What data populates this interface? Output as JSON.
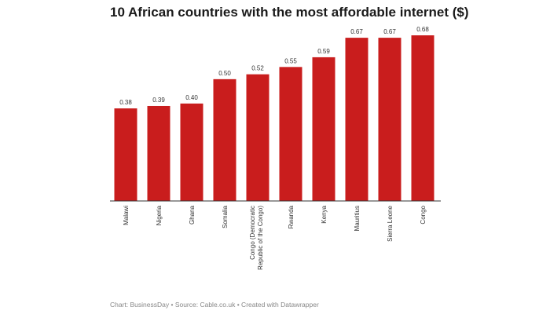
{
  "chart_data": {
    "type": "bar",
    "title": "10 African countries with the most affordable internet ($)",
    "categories": [
      "Malawi",
      "Nigeria",
      "Ghana",
      "Somalia",
      "Congo (Democratic Republic of the Congo)",
      "Rwanda",
      "Kenya",
      "Mauritius",
      "Sierra Leone",
      "Congo"
    ],
    "values": [
      0.38,
      0.39,
      0.4,
      0.5,
      0.52,
      0.55,
      0.59,
      0.67,
      0.67,
      0.68
    ],
    "value_labels": [
      "0.38",
      "0.39",
      "0.40",
      "0.50",
      "0.52",
      "0.55",
      "0.59",
      "0.67",
      "0.67",
      "0.68"
    ],
    "xlabel": "",
    "ylabel": "",
    "ylim": [
      0,
      0.68
    ],
    "grid": false,
    "bar_color": "#c91d1d"
  },
  "footer": {
    "source": "Chart: BusinessDay • Source: Cable.co.uk • Created with Datawrapper"
  }
}
